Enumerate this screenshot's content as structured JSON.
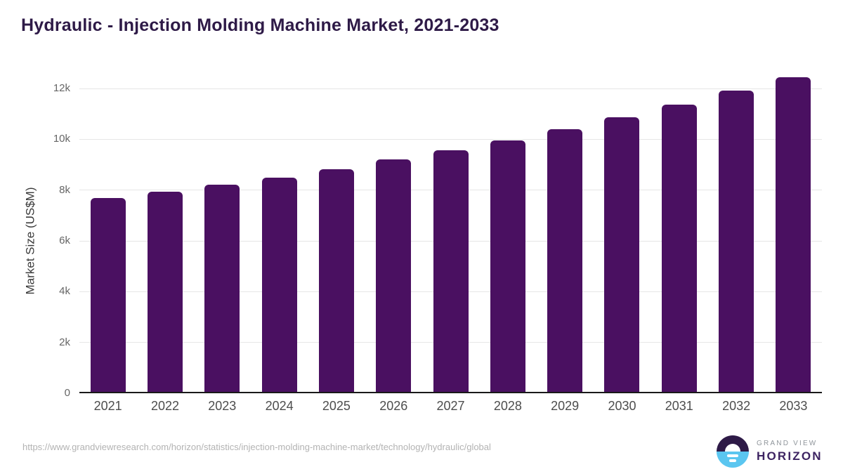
{
  "title": "Hydraulic - Injection Molding Machine Market, 2021-2033",
  "chart_data": {
    "type": "bar",
    "title": "Hydraulic - Injection Molding Machine Market, 2021-2033",
    "categories": [
      "2021",
      "2022",
      "2023",
      "2024",
      "2025",
      "2026",
      "2027",
      "2028",
      "2029",
      "2030",
      "2031",
      "2032",
      "2033"
    ],
    "values": [
      7620,
      7890,
      8170,
      8440,
      8760,
      9140,
      9500,
      9900,
      10350,
      10820,
      11320,
      11850,
      12400
    ],
    "series_name": "Market Size",
    "xlabel": "",
    "ylabel": "Market Size (US$M)",
    "ylim": [
      0,
      12000
    ],
    "yticks": [
      {
        "label": "0",
        "value": 0
      },
      {
        "label": "2k",
        "value": 2000
      },
      {
        "label": "4k",
        "value": 4000
      },
      {
        "label": "6k",
        "value": 6000
      },
      {
        "label": "8k",
        "value": 8000
      },
      {
        "label": "10k",
        "value": 10000
      },
      {
        "label": "12k",
        "value": 12000
      }
    ],
    "grid": true,
    "legend_position": "none",
    "bar_color": "#4a1061"
  },
  "footer": {
    "source_url": "https://www.grandviewresearch.com/horizon/statistics/injection-molding-machine-market/technology/hydraulic/global",
    "logo": {
      "brand_top": "GRAND VIEW",
      "brand_bottom": "HORIZON"
    }
  },
  "colors": {
    "title_text": "#2e1a47",
    "bar": "#4a1061",
    "gridline": "#e6e6e6",
    "axis_line": "#1a1a1a",
    "tick_text": "#666666",
    "x_label_text": "#4d4d4d",
    "source_text": "#b3b3b3",
    "logo_purple": "#2e1a47",
    "logo_blue": "#5bc6f0",
    "logo_text_gray": "#8f959b",
    "logo_text_purple": "#3d2462"
  }
}
